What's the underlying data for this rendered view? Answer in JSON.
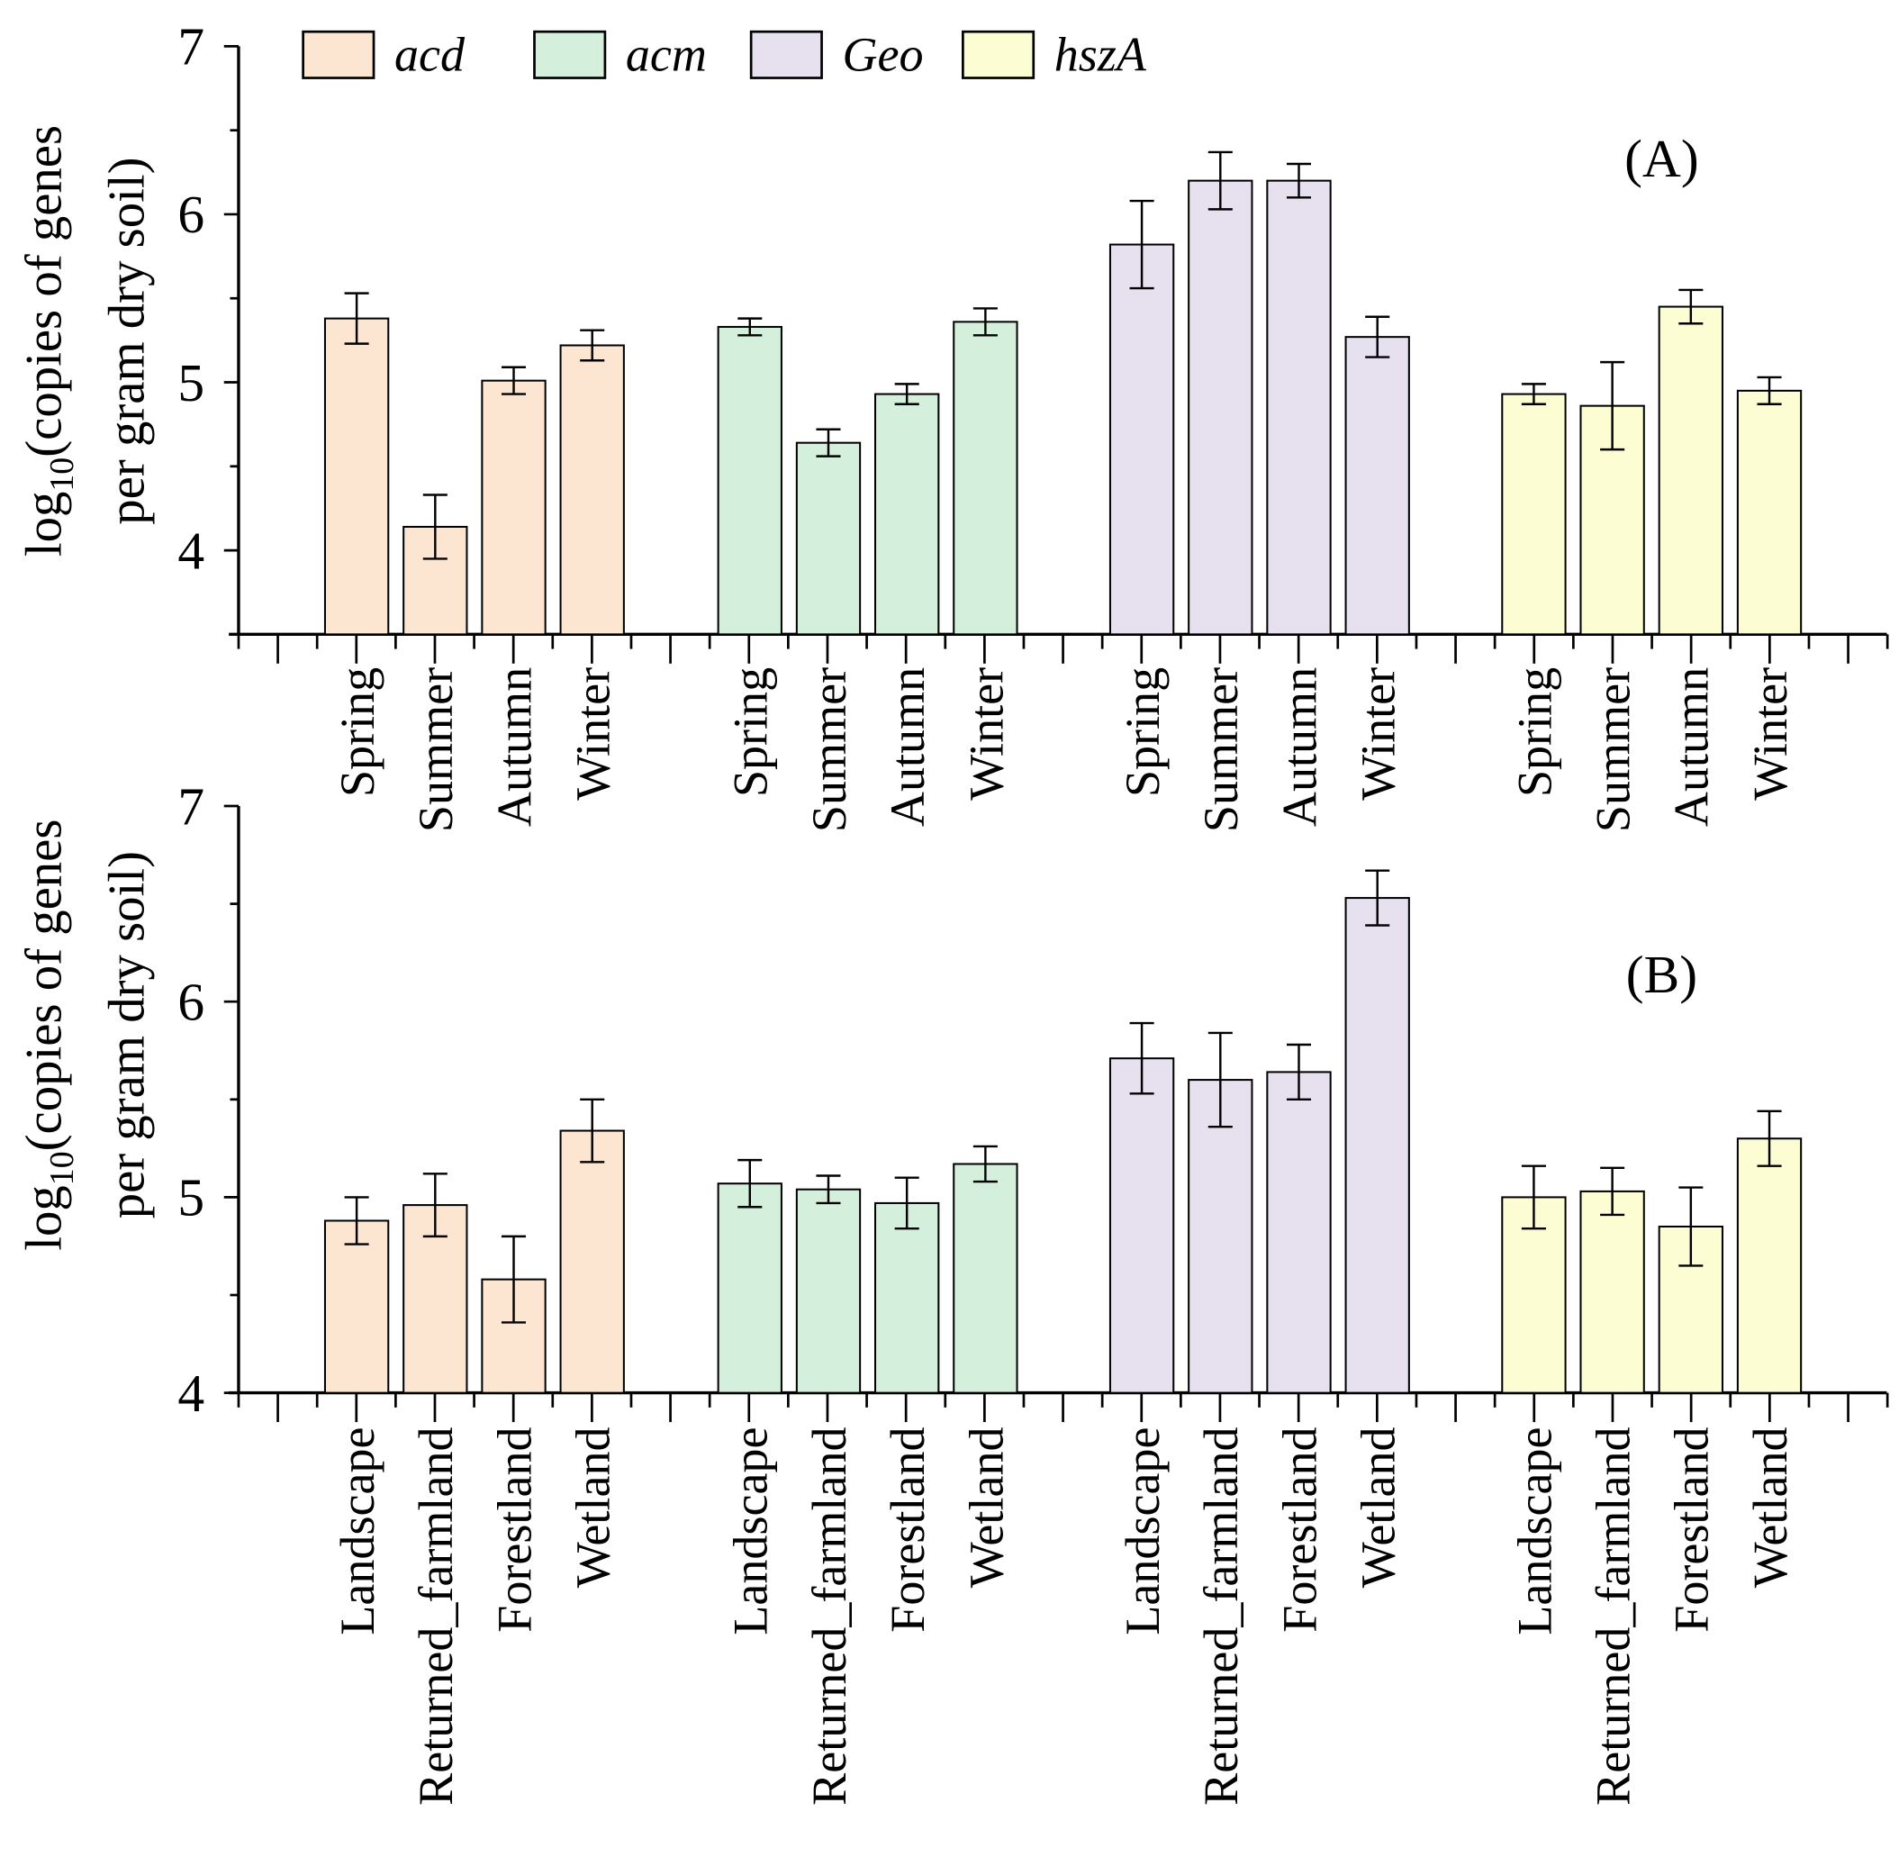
{
  "chart_data": {
    "type": "bar",
    "legend": {
      "placement": "top-left",
      "entries": [
        {
          "name": "acd",
          "color": "#fde6d1"
        },
        {
          "name": "acm",
          "color": "#d4efdc"
        },
        {
          "name": "Geo",
          "color": "#e6e0ef"
        },
        {
          "name": "hszA",
          "color": "#fdfdd3"
        }
      ]
    },
    "panels": [
      {
        "label": "(A)",
        "ylabel_line1": "log",
        "ylabel_sub": "10",
        "ylabel_line1_rest": "(copies of genes",
        "ylabel_line2": "per gram dry soil)",
        "ylim": [
          3.5,
          7
        ],
        "yticks": [
          "4",
          "5",
          "6",
          "7"
        ],
        "categories": [
          "Spring",
          "Summer",
          "Autumn",
          "Winter"
        ],
        "series": [
          {
            "name": "acd",
            "values": [
              5.38,
              4.14,
              5.01,
              5.22
            ],
            "errors": [
              0.15,
              0.19,
              0.08,
              0.09
            ]
          },
          {
            "name": "acm",
            "values": [
              5.33,
              4.64,
              4.93,
              5.36
            ],
            "errors": [
              0.05,
              0.08,
              0.06,
              0.08
            ]
          },
          {
            "name": "Geo",
            "values": [
              5.82,
              6.2,
              6.2,
              5.27
            ],
            "errors": [
              0.26,
              0.17,
              0.1,
              0.12
            ]
          },
          {
            "name": "hszA",
            "values": [
              4.93,
              4.86,
              5.45,
              4.95
            ],
            "errors": [
              0.06,
              0.26,
              0.1,
              0.08
            ]
          }
        ]
      },
      {
        "label": "(B)",
        "ylabel_line1": "log",
        "ylabel_sub": "10",
        "ylabel_line1_rest": "(copies of genes",
        "ylabel_line2": "per gram dry soil)",
        "ylim": [
          4,
          7
        ],
        "yticks": [
          "4",
          "5",
          "6",
          "7"
        ],
        "categories": [
          "Landscape",
          "Returned_farmland",
          "Forestland",
          "Wetland"
        ],
        "series": [
          {
            "name": "acd",
            "values": [
              4.88,
              4.96,
              4.58,
              5.34
            ],
            "errors": [
              0.12,
              0.16,
              0.22,
              0.16
            ]
          },
          {
            "name": "acm",
            "values": [
              5.07,
              5.04,
              4.97,
              5.17
            ],
            "errors": [
              0.12,
              0.07,
              0.13,
              0.09
            ]
          },
          {
            "name": "Geo",
            "values": [
              5.71,
              5.6,
              5.64,
              6.53
            ],
            "errors": [
              0.18,
              0.24,
              0.14,
              0.14
            ]
          },
          {
            "name": "hszA",
            "values": [
              5.0,
              5.03,
              4.85,
              5.3
            ],
            "errors": [
              0.16,
              0.12,
              0.2,
              0.14
            ]
          }
        ]
      }
    ]
  }
}
